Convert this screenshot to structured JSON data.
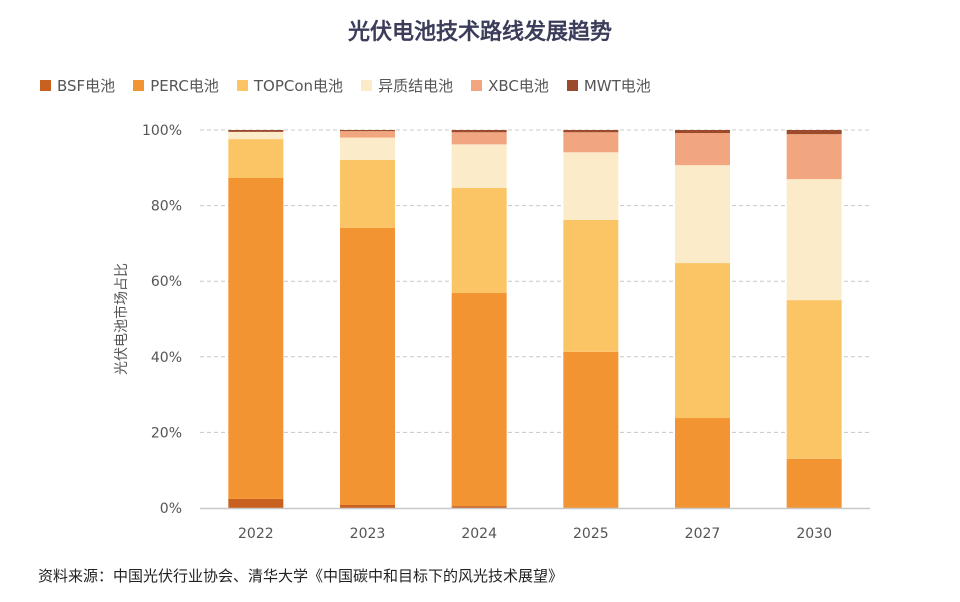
{
  "chart_data": {
    "type": "bar",
    "stacked": true,
    "title": "光伏电池技术路线发展趋势",
    "xlabel": "",
    "ylabel": "光伏电池市场占比",
    "ylim": [
      0,
      100
    ],
    "yticks": [
      "0%",
      "20%",
      "40%",
      "60%",
      "80%",
      "100%"
    ],
    "grid": true,
    "legend_position": "top",
    "categories": [
      "2022",
      "2023",
      "2024",
      "2025",
      "2027",
      "2030"
    ],
    "series": [
      {
        "name": "BSF电池",
        "color": "#c8611f",
        "values": [
          2.4,
          0.8,
          0.5,
          0,
          0,
          0
        ]
      },
      {
        "name": "PERC电池",
        "color": "#f39433",
        "values": [
          84.9,
          73.3,
          56.4,
          41.3,
          23.8,
          13.0
        ]
      },
      {
        "name": "TOPCon电池",
        "color": "#fbc566",
        "values": [
          10.3,
          18.0,
          27.8,
          34.9,
          41.0,
          42.0
        ]
      },
      {
        "name": "异质结电池",
        "color": "#fcebc9",
        "values": [
          1.9,
          5.9,
          11.5,
          17.9,
          25.9,
          32.0
        ]
      },
      {
        "name": "XBC电池",
        "color": "#f2a67f",
        "values": [
          0,
          1.7,
          3.2,
          5.3,
          8.5,
          11.9
        ]
      },
      {
        "name": "MWT电池",
        "color": "#9c4a2c",
        "values": [
          0.5,
          0.3,
          0.6,
          0.6,
          0.8,
          1.1
        ]
      }
    ]
  },
  "source": "资料来源：中国光伏行业协会、清华大学《中国碳中和目标下的风光技术展望》"
}
